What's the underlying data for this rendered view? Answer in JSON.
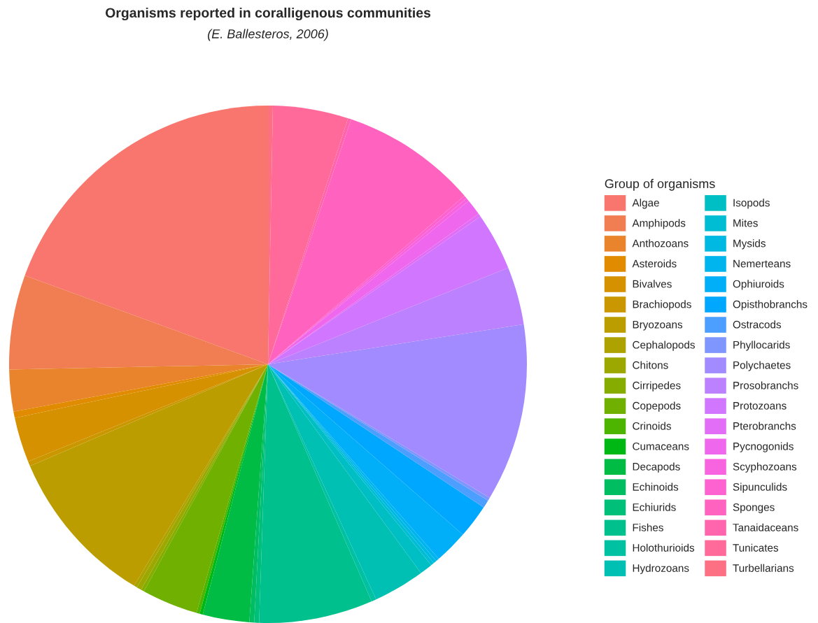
{
  "chart_data": {
    "type": "pie",
    "title": "Organisms reported in coralligenous communities",
    "subtitle": "(E. Ballesteros, 2006)",
    "legend_title": "Group of organisms",
    "legend": "right",
    "categories": [
      "Algae",
      "Amphipods",
      "Anthozoans",
      "Asteroids",
      "Bivalves",
      "Brachiopods",
      "Bryozoans",
      "Cephalopods",
      "Chitons",
      "Cirripedes",
      "Copepods",
      "Crinoids",
      "Cumaceans",
      "Decapods",
      "Echinoids",
      "Echiurids",
      "Fishes",
      "Holothurioids",
      "Hydrozoans",
      "Isopods",
      "Mites",
      "Mysids",
      "Nemerteans",
      "Ophiuroids",
      "Opisthobranchs",
      "Ostracods",
      "Phyllocarids",
      "Polychaetes",
      "Prosobranchs",
      "Protozoans",
      "Pterobranchs",
      "Pycnogonids",
      "Scyphozoans",
      "Sipunculids",
      "Sponges",
      "Tanaidaceans",
      "Tunicates",
      "Turbellarians"
    ],
    "values": [
      19.4,
      5.9,
      2.6,
      0.4,
      2.8,
      0.3,
      9.9,
      0.2,
      0.3,
      0.2,
      3.5,
      0.2,
      0.2,
      2.9,
      0.3,
      0.3,
      7.1,
      0.3,
      3.2,
      0.8,
      0.2,
      0.2,
      0.2,
      2.1,
      2.1,
      0.5,
      0.2,
      11.1,
      3.6,
      3.6,
      0.2,
      1.0,
      0.2,
      0.2,
      8.5,
      0.2,
      4.7,
      0.3
    ],
    "colors": [
      "#f8766d",
      "#f17d52",
      "#e9842c",
      "#e08b00",
      "#d69100",
      "#ca9700",
      "#bc9d00",
      "#ada200",
      "#9ca700",
      "#87ac00",
      "#6fb000",
      "#4db400",
      "#00b813",
      "#00bb44",
      "#00bd61",
      "#00bf79",
      "#00c08e",
      "#00c1a2",
      "#00c0b4",
      "#00bfc4",
      "#00bdd4",
      "#00b9e2",
      "#00b5ee",
      "#00aff8",
      "#00a7ff",
      "#4d9fff",
      "#7f96ff",
      "#a18bff",
      "#bc81ff",
      "#d177ff",
      "#e26ef7",
      "#ee67ec",
      "#f863df",
      "#fe61d0",
      "#ff62bf",
      "#ff65ad",
      "#ff6a9a",
      "#fd7084"
    ]
  }
}
